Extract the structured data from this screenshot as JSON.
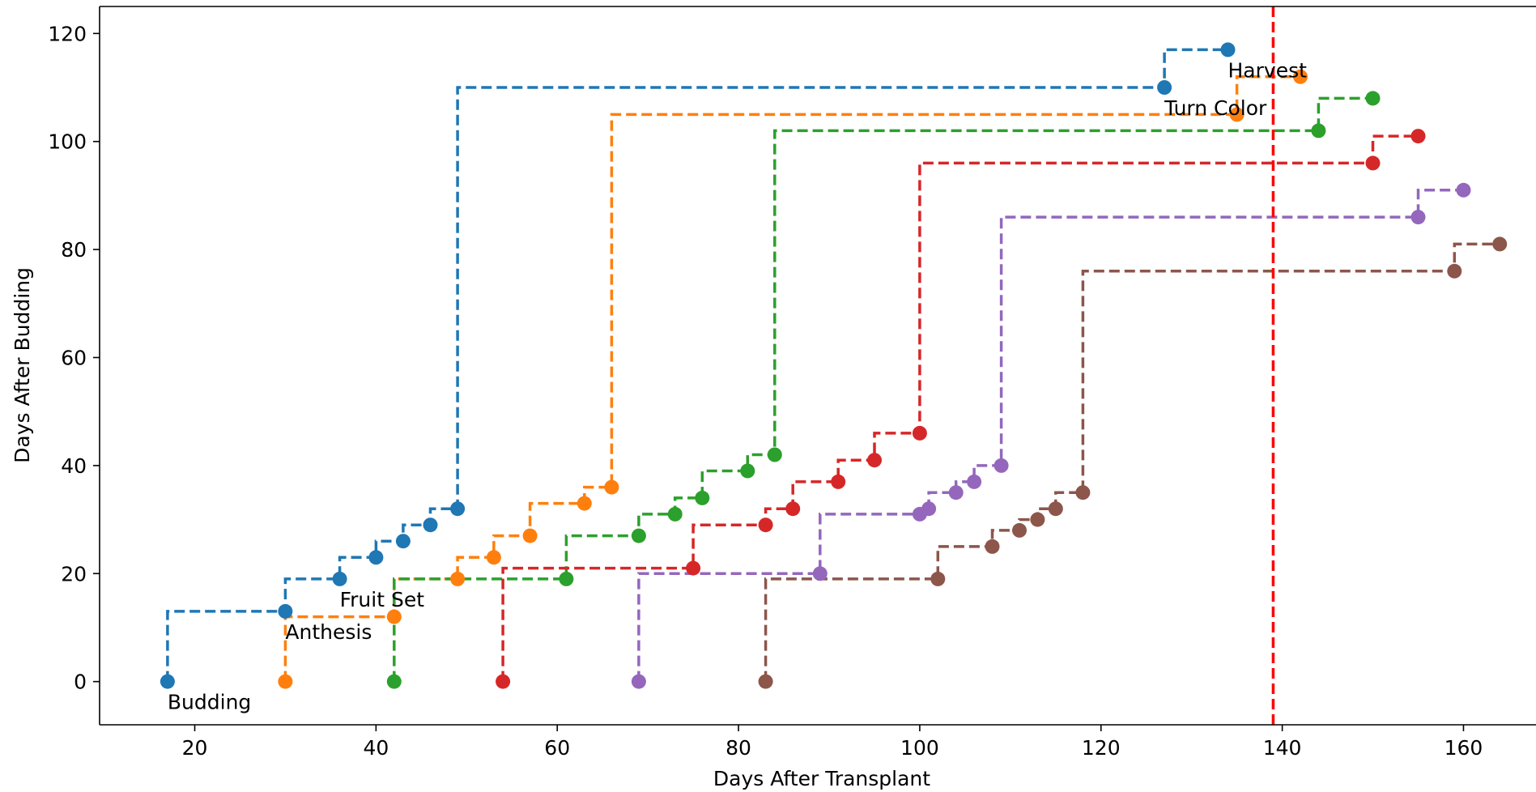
{
  "chart_data": {
    "type": "line",
    "title": "",
    "xlabel": "Days After Transplant",
    "ylabel": "Days After Budding",
    "xlim": [
      9.5,
      168
    ],
    "ylim": [
      -8,
      125
    ],
    "xticks": [
      20,
      40,
      60,
      80,
      100,
      120,
      140,
      160
    ],
    "yticks": [
      0,
      20,
      40,
      60,
      80,
      100,
      120
    ],
    "grid": false,
    "legend": "none",
    "step_style": "post",
    "line_style": "dashed",
    "series": [
      {
        "color": "#1f77b4",
        "x": [
          17,
          30,
          36,
          40,
          43,
          46,
          49,
          127,
          134
        ],
        "y": [
          0,
          13,
          19,
          23,
          26,
          29,
          32,
          110,
          117
        ]
      },
      {
        "color": "#ff7f0e",
        "x": [
          30,
          42,
          49,
          53,
          57,
          63,
          66,
          135,
          142
        ],
        "y": [
          0,
          12,
          19,
          23,
          27,
          33,
          36,
          105,
          112
        ]
      },
      {
        "color": "#2ca02c",
        "x": [
          42,
          61,
          69,
          73,
          76,
          81,
          84,
          144,
          150
        ],
        "y": [
          0,
          19,
          27,
          31,
          34,
          39,
          42,
          102,
          108
        ]
      },
      {
        "color": "#d62728",
        "x": [
          54,
          75,
          83,
          86,
          91,
          95,
          100,
          150,
          155
        ],
        "y": [
          0,
          21,
          29,
          32,
          37,
          41,
          46,
          96,
          101
        ]
      },
      {
        "color": "#9467bd",
        "x": [
          69,
          89,
          100,
          101,
          104,
          106,
          109,
          155,
          160
        ],
        "y": [
          0,
          20,
          31,
          32,
          35,
          37,
          40,
          86,
          91
        ]
      },
      {
        "color": "#8c564b",
        "x": [
          83,
          102,
          108,
          111,
          113,
          115,
          118,
          159,
          164
        ],
        "y": [
          0,
          19,
          25,
          28,
          30,
          32,
          35,
          76,
          81
        ]
      }
    ],
    "vline": {
      "x": 139,
      "color": "#ff0000",
      "style": "dashed"
    },
    "annotations": [
      {
        "text": "Budding",
        "x": 17,
        "y": 0
      },
      {
        "text": "Anthesis",
        "x": 30,
        "y": 13
      },
      {
        "text": "Fruit Set",
        "x": 36,
        "y": 19
      },
      {
        "text": "Turn Color",
        "x": 127,
        "y": 110
      },
      {
        "text": "Harvest",
        "x": 134,
        "y": 117
      }
    ]
  }
}
